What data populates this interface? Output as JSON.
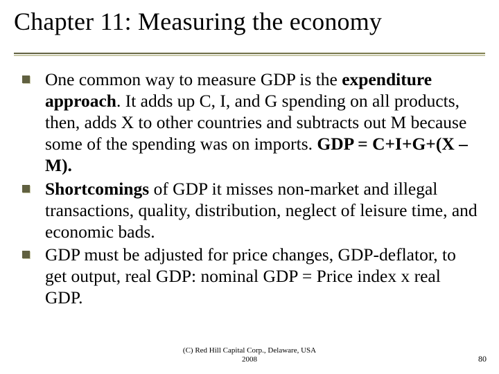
{
  "title": "Chapter 11: Measuring the economy",
  "bullets": [
    {
      "pre": "One common way to measure GDP is the ",
      "bold1": "expenditure approach",
      "mid": ". It adds up C, I, and G spending on all products, then, adds X to other countries and subtracts out M because some of the spending was on imports. ",
      "bold2": "GDP = C+I+G+(X – M).",
      "post": ""
    },
    {
      "pre": "",
      "bold1": "Shortcomings",
      "mid": " of GDP it misses non-market and illegal transactions, quality, distribution, neglect of leisure time, and economic bads.",
      "bold2": "",
      "post": ""
    },
    {
      "pre": "GDP must be adjusted for price changes, GDP-deflator, to get output, real GDP: nominal GDP = Price index x real GDP.",
      "bold1": "",
      "mid": "",
      "bold2": "",
      "post": ""
    }
  ],
  "footer_line1": "(C) Red Hill Capital Corp., Delaware, USA",
  "footer_line2": "2008",
  "page_number": "80",
  "style": {
    "background": "#ffffff",
    "title_fontsize": 36,
    "title_rule_color": "#606040",
    "title_shadow_color": "#c8c8a8",
    "bullet_icon_color": "#606040",
    "bullet_icon_shadow": "#c8c8a8",
    "body_fontsize": 25.5,
    "footer_fontsize": 11,
    "pagenum_fontsize": 12
  }
}
